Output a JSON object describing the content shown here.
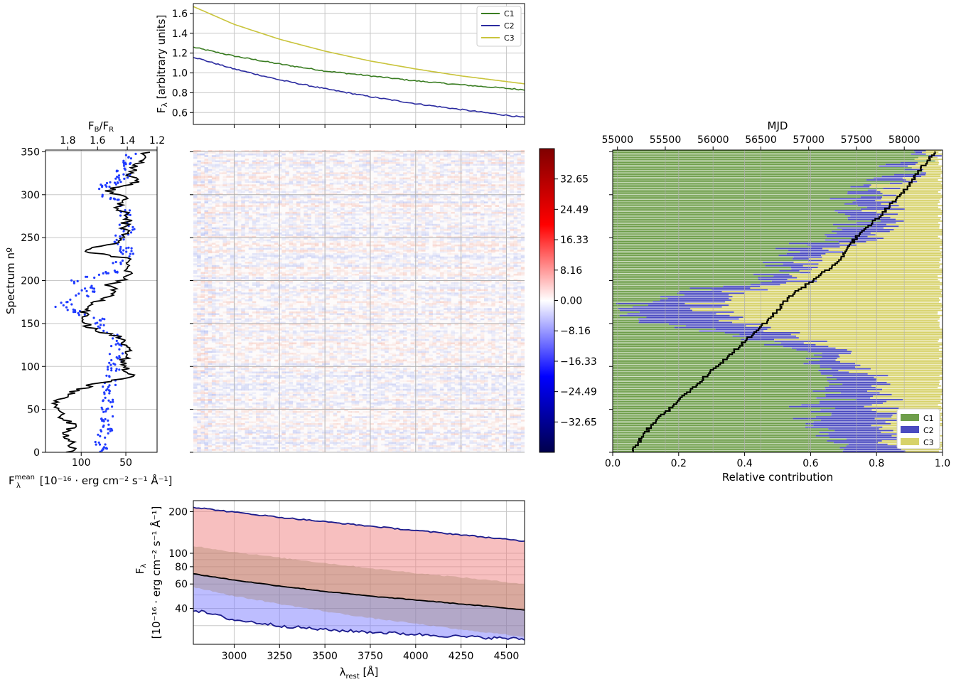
{
  "chart_data": [
    {
      "id": "top_components",
      "type": "line",
      "ylabel_main": "F",
      "ylabel_sub": "λ",
      "ylabel_rest": " [arbitrary units]",
      "xlim": [
        2775,
        4600
      ],
      "ylim": [
        0.48,
        1.7
      ],
      "yticks": [
        0.6,
        0.8,
        1.0,
        1.2,
        1.4,
        1.6
      ],
      "ytick_labels": [
        "0.6",
        "0.8",
        "1.0",
        "1.2",
        "1.4",
        "1.6"
      ],
      "grid": true,
      "legend_position": "top-right",
      "series": [
        {
          "name": "C1",
          "color": "#3a7d22",
          "x": [
            2775,
            3000,
            3250,
            3500,
            3750,
            4000,
            4250,
            4600
          ],
          "y": [
            1.26,
            1.17,
            1.09,
            1.02,
            0.97,
            0.92,
            0.88,
            0.83
          ]
        },
        {
          "name": "C2",
          "color": "#2b2ba0",
          "x": [
            2775,
            3000,
            3250,
            3500,
            3750,
            4000,
            4250,
            4600
          ],
          "y": [
            1.16,
            1.04,
            0.93,
            0.84,
            0.76,
            0.69,
            0.63,
            0.55
          ]
        },
        {
          "name": "C3",
          "color": "#c9c43c",
          "x": [
            2775,
            3000,
            3250,
            3500,
            3750,
            4000,
            4250,
            4600
          ],
          "y": [
            1.67,
            1.49,
            1.34,
            1.22,
            1.12,
            1.04,
            0.97,
            0.89
          ]
        }
      ]
    },
    {
      "id": "left_mean_flux",
      "type": "line",
      "orientation": "horizontal",
      "ylabel": "Spectrum nº",
      "xlabel_main": "F",
      "xlabel_sup": "mean",
      "xlabel_sub": "λ",
      "xlabel_rest": " [10⁻¹⁶ · erg cm⁻² s⁻¹ Å⁻¹]",
      "xlim": [
        140,
        15
      ],
      "xticks": [
        100,
        50
      ],
      "xtick_labels": [
        "100",
        "50"
      ],
      "ylim": [
        0,
        352
      ],
      "yticks": [
        0,
        50,
        100,
        150,
        200,
        250,
        300,
        350
      ],
      "ytick_labels": [
        "0",
        "50",
        "100",
        "150",
        "200",
        "250",
        "300",
        "350"
      ],
      "top_axis": {
        "label_main": "F",
        "label_sub_b": "B",
        "label_mid": "/F",
        "label_sub_r": "R",
        "lim": [
          1.95,
          1.2
        ],
        "ticks": [
          1.8,
          1.6,
          1.4,
          1.2
        ],
        "tick_labels": [
          "1.8",
          "1.6",
          "1.4",
          "1.2"
        ]
      },
      "series": [
        {
          "name": "",
          "color": "#000000",
          "kind": "line",
          "y": [
            0,
            10,
            20,
            30,
            40,
            50,
            60,
            70,
            80,
            88,
            95,
            105,
            115,
            125,
            135,
            145,
            155,
            165,
            175,
            185,
            195,
            205,
            215,
            225,
            235,
            245,
            255,
            265,
            275,
            285,
            295,
            305,
            315,
            325,
            335,
            345,
            350
          ],
          "x": [
            112,
            108,
            120,
            108,
            120,
            130,
            128,
            110,
            85,
            35,
            50,
            55,
            45,
            48,
            60,
            90,
            100,
            95,
            85,
            60,
            70,
            45,
            48,
            45,
            100,
            55,
            50,
            52,
            45,
            60,
            50,
            70,
            40,
            45,
            38,
            30,
            25
          ]
        },
        {
          "name": "",
          "color": "#1f3bff",
          "kind": "points",
          "note_y": [
            5,
            15,
            25,
            35,
            45,
            55,
            65,
            75,
            85,
            95,
            105,
            115,
            125,
            135,
            145,
            155,
            160,
            170,
            180,
            190,
            200,
            210,
            220,
            230,
            240,
            250,
            260,
            270,
            280,
            290,
            300,
            310,
            320,
            330,
            340,
            348
          ],
          "note_x": [
            1.58,
            1.57,
            1.55,
            1.56,
            1.52,
            1.55,
            1.54,
            1.53,
            1.52,
            1.5,
            1.48,
            1.47,
            1.46,
            1.49,
            1.55,
            1.6,
            1.7,
            1.85,
            1.72,
            1.65,
            1.75,
            1.5,
            1.45,
            1.4,
            1.42,
            1.46,
            1.4,
            1.43,
            1.41,
            1.44,
            1.6,
            1.55,
            1.42,
            1.45,
            1.4,
            1.35
          ]
        }
      ]
    },
    {
      "id": "heatmap_residuals",
      "type": "heatmap",
      "colormap": "seismic",
      "colorbar_ticks": [
        -32.65,
        -24.49,
        -16.33,
        -8.16,
        0.0,
        8.16,
        16.33,
        24.49,
        32.65
      ],
      "colorbar_tick_labels": [
        "−32.65",
        "−24.49",
        "−16.33",
        "−8.16",
        "0.00",
        "8.16",
        "16.33",
        "24.49",
        "32.65"
      ],
      "clim": [
        -40.8,
        40.8
      ]
    },
    {
      "id": "bottom_envelope",
      "type": "area",
      "xlabel_main": "λ",
      "xlabel_sub": "rest",
      "xlabel_rest": " [Å]",
      "ylabel_line1_main": "F",
      "ylabel_line1_sub": "λ",
      "ylabel_line2": "[10⁻¹⁶ · erg cm⁻² s⁻¹ Å⁻¹]",
      "yscale": "log",
      "xlim": [
        2775,
        4600
      ],
      "ylim": [
        22,
        240
      ],
      "xticks": [
        3000,
        3250,
        3500,
        3750,
        4000,
        4250,
        4500
      ],
      "xtick_labels": [
        "3000",
        "3250",
        "3500",
        "3750",
        "4000",
        "4250",
        "4500"
      ],
      "yticks": [
        40,
        60,
        80,
        100,
        200
      ],
      "ytick_labels": [
        "40",
        "60",
        "80",
        "100",
        "200"
      ],
      "x": [
        2775,
        3000,
        3250,
        3500,
        3750,
        4000,
        4250,
        4600
      ],
      "max_line": [
        215,
        198,
        182,
        169,
        157,
        146,
        136,
        122
      ],
      "upper_band": [
        113,
        102,
        93,
        85,
        78,
        72,
        67,
        60
      ],
      "mean_line": [
        71,
        64,
        58,
        53,
        49,
        46,
        43,
        39
      ],
      "lower_band": [
        57,
        49,
        43,
        38,
        34,
        31,
        28,
        25
      ],
      "min_line": [
        39,
        33,
        30,
        28,
        27,
        26,
        25,
        24
      ]
    },
    {
      "id": "relative_contribution",
      "type": "bar",
      "orientation": "horizontal",
      "stacked": true,
      "xlabel": "Relative contribution",
      "xlim": [
        0.0,
        1.0
      ],
      "xticks": [
        0.0,
        0.2,
        0.4,
        0.6,
        0.8,
        1.0
      ],
      "xtick_labels": [
        "0.0",
        "0.2",
        "0.4",
        "0.6",
        "0.8",
        "1.0"
      ],
      "top_axis": {
        "label": "MJD",
        "lim": [
          54950,
          58400
        ],
        "ticks": [
          55000,
          55500,
          56000,
          56500,
          57000,
          57500,
          58000
        ],
        "tick_labels": [
          "55000",
          "55500",
          "56000",
          "56500",
          "57000",
          "57500",
          "58000"
        ]
      },
      "legend_position": "lower-right",
      "series_names": [
        "C1",
        "C2",
        "C3"
      ],
      "colors": {
        "C1": "#6e9e4a",
        "C2": "#4b4bc0",
        "C3": "#d7d26a"
      },
      "profile_spectrum": [
        0,
        40,
        80,
        120,
        160,
        180,
        200,
        220,
        260,
        300,
        350
      ],
      "profile_C1": [
        0.72,
        0.6,
        0.66,
        0.6,
        0.02,
        0.1,
        0.48,
        0.5,
        0.72,
        0.7,
        0.98
      ],
      "profile_C2": [
        0.15,
        0.22,
        0.14,
        0.1,
        0.3,
        0.2,
        0.1,
        0.08,
        0.12,
        0.1,
        0.01
      ],
      "profile_C3": [
        0.13,
        0.18,
        0.2,
        0.3,
        0.68,
        0.7,
        0.42,
        0.42,
        0.16,
        0.2,
        0.01
      ],
      "mjd_track_spectrum": [
        0,
        30,
        60,
        90,
        120,
        150,
        180,
        200,
        220,
        250,
        280,
        310,
        340,
        350
      ],
      "mjd_track_mjd": [
        55150,
        55350,
        55650,
        55950,
        56250,
        56550,
        56800,
        57050,
        57300,
        57500,
        57800,
        58050,
        58250,
        58330
      ]
    }
  ]
}
